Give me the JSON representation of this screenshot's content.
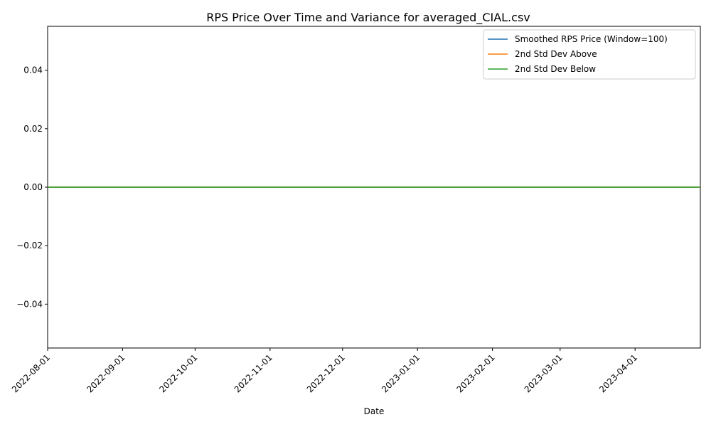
{
  "chart_data": {
    "type": "line",
    "title": "RPS Price Over Time and Variance for averaged_CIAL.csv",
    "xlabel": "Date",
    "ylabel": "",
    "x": [
      "2022-08-01",
      "2023-04-28"
    ],
    "xlim": [
      "2022-08-01",
      "2023-04-28"
    ],
    "ylim": [
      -0.055,
      0.055
    ],
    "x_ticks": [
      "2022-08-01",
      "2022-09-01",
      "2022-10-01",
      "2022-11-01",
      "2022-12-01",
      "2023-01-01",
      "2023-02-01",
      "2023-03-01",
      "2023-04-01"
    ],
    "y_ticks": [
      {
        "value": 0.04,
        "label": "0.04"
      },
      {
        "value": 0.02,
        "label": "0.02"
      },
      {
        "value": 0.0,
        "label": "0.00"
      },
      {
        "value": -0.02,
        "label": "−0.02"
      },
      {
        "value": -0.04,
        "label": "−0.04"
      }
    ],
    "grid": false,
    "legend_position": "top-right",
    "series": [
      {
        "name": "Smoothed RPS Price (Window=100)",
        "color": "#1f77b4",
        "values": [
          0,
          0
        ]
      },
      {
        "name": "2nd Std Dev Above",
        "color": "#ff7f0e",
        "values": [
          0,
          0
        ]
      },
      {
        "name": "2nd Std Dev Below",
        "color": "#2ca02c",
        "values": [
          0,
          0
        ]
      }
    ]
  }
}
